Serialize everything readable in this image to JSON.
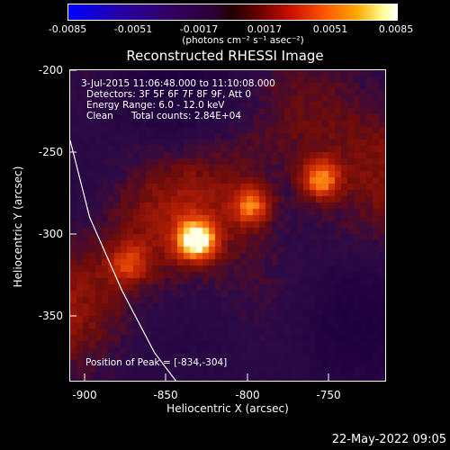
{
  "colorbar": {
    "tick_labels": [
      "-0.0085",
      "-0.0051",
      "-0.0017",
      "0.0017",
      "0.0051",
      "0.0085"
    ],
    "unit_label": "(photons cm⁻² s⁻¹ asec⁻²)"
  },
  "chart_data": {
    "type": "heatmap",
    "title": "Reconstructed RHESSI Image",
    "xlabel": "Heliocentric X (arcsec)",
    "ylabel": "Heliocentric Y (arcsec)",
    "xlim": [
      -912,
      -718
    ],
    "ylim": [
      -390,
      -200
    ],
    "x_ticks": [
      "-900",
      "-850",
      "-800",
      "-750"
    ],
    "y_ticks": [
      "-200",
      "-250",
      "-300",
      "-350"
    ],
    "colorbar_range": [
      -0.0085,
      0.0085
    ],
    "colormap": "dark blue–purple–red–orange–yellow–white",
    "sources": [
      {
        "x": -834,
        "y": -304,
        "intensity": 1.0
      },
      {
        "x": -758,
        "y": -267,
        "intensity": 0.72
      },
      {
        "x": -800,
        "y": -283,
        "intensity": 0.62
      },
      {
        "x": -876,
        "y": -318,
        "intensity": 0.42
      }
    ],
    "limb_line": [
      [
        -912,
        -243
      ],
      [
        -900,
        -290
      ],
      [
        -880,
        -335
      ],
      [
        -860,
        -373
      ],
      [
        -847,
        -390
      ]
    ],
    "info": {
      "time_range": "3-Jul-2015 11:06:48.000 to 11:10:08.000",
      "detectors": "Detectors: 3F 5F 6F 7F 8F 9F, Att 0",
      "energy": "Energy Range: 6.0 - 12.0 keV",
      "clean": "Clean",
      "counts": "Total counts: 2.84E+04"
    },
    "peak_label": "Position of Peak = [-834,-304]"
  },
  "footer": {
    "date": "22-May-2022 09:05"
  }
}
